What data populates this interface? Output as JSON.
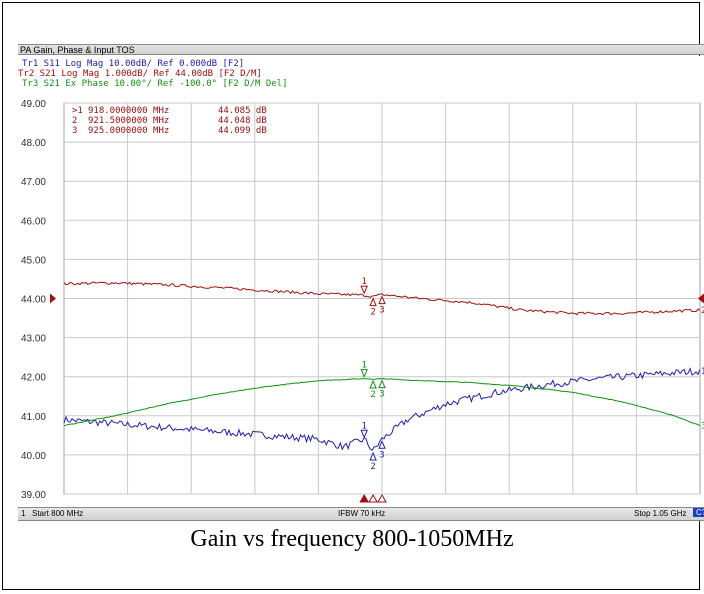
{
  "window": {
    "title": "PA Gain, Phase & Input TOS"
  },
  "traces": [
    {
      "id": "Tr1",
      "text": "Tr1 S11 Log Mag 10.00dB/ Ref 0.000dB [F2]",
      "color": "#2020b0",
      "active": false
    },
    {
      "id": "Tr2",
      "text": "Tr2 S21 Log Mag 1.000dB/ Ref 44.00dB [F2 D/M]",
      "color": "#a01010",
      "active": true
    },
    {
      "id": "Tr3",
      "text": "Tr3 S21 Ex Phase 10.00°/ Ref -100.0° [F2 D/M Del]",
      "color": "#109010",
      "active": false
    }
  ],
  "markers": [
    {
      "label": ">1",
      "freq": "918.0000000 MHz",
      "value": "44.085 dB",
      "freq_mhz": 918.0
    },
    {
      "label": "2",
      "freq": "921.5000000 MHz",
      "value": "44.048 dB",
      "freq_mhz": 921.5
    },
    {
      "label": "3",
      "freq": "925.0000000 MHz",
      "value": "44.099 dB",
      "freq_mhz": 925.0
    }
  ],
  "status": {
    "channel": "1",
    "start": "Start 800 MHz",
    "ifbw": "IFBW 70 kHz",
    "stop": "Stop 1.05 GHz",
    "cal": "C?"
  },
  "caption": "Gain vs frequency 800-1050MHz",
  "chart_data": {
    "type": "line",
    "title": "PA Gain, Phase & Input TOS",
    "xlabel": "",
    "ylabel": "",
    "xlim": [
      800,
      1050
    ],
    "ylim": [
      39,
      49
    ],
    "y_ticks": [
      "49.00",
      "48.00",
      "47.00",
      "46.00",
      "45.00",
      "44.00",
      "43.00",
      "42.00",
      "41.00",
      "40.00",
      "39.00"
    ],
    "grid": true,
    "series": [
      {
        "name": "Tr1",
        "color": "#2020b0",
        "end_label": "1",
        "x": [
          800,
          820,
          840,
          860,
          880,
          900,
          910,
          918,
          921.5,
          925,
          935,
          950,
          970,
          990,
          1010,
          1030,
          1050
        ],
        "y": [
          40.9,
          40.8,
          40.7,
          40.6,
          40.5,
          40.4,
          40.2,
          40.4,
          40.1,
          40.4,
          40.9,
          41.3,
          41.6,
          41.8,
          41.95,
          42.05,
          42.15
        ]
      },
      {
        "name": "Tr2",
        "color": "#a01010",
        "end_label": "2",
        "x": [
          800,
          820,
          840,
          860,
          880,
          900,
          918,
          921.5,
          925,
          940,
          960,
          980,
          1000,
          1020,
          1040,
          1050
        ],
        "y": [
          44.38,
          44.4,
          44.35,
          44.28,
          44.2,
          44.12,
          44.085,
          44.048,
          44.099,
          44.0,
          43.9,
          43.7,
          43.62,
          43.62,
          43.68,
          43.7
        ]
      },
      {
        "name": "Tr3",
        "color": "#109010",
        "end_label": "3",
        "x": [
          800,
          820,
          840,
          860,
          880,
          900,
          918,
          921.5,
          925,
          940,
          960,
          980,
          1000,
          1020,
          1040,
          1050
        ],
        "y": [
          40.75,
          41.0,
          41.3,
          41.55,
          41.75,
          41.9,
          41.95,
          41.94,
          41.95,
          41.9,
          41.85,
          41.75,
          41.6,
          41.35,
          41.0,
          40.75
        ]
      }
    ],
    "markers": [
      {
        "label": "1",
        "x": 918.0
      },
      {
        "label": "2",
        "x": 921.5
      },
      {
        "label": "3",
        "x": 925.0
      }
    ],
    "reference_trace": "Tr2",
    "reference_value": 44.0
  }
}
